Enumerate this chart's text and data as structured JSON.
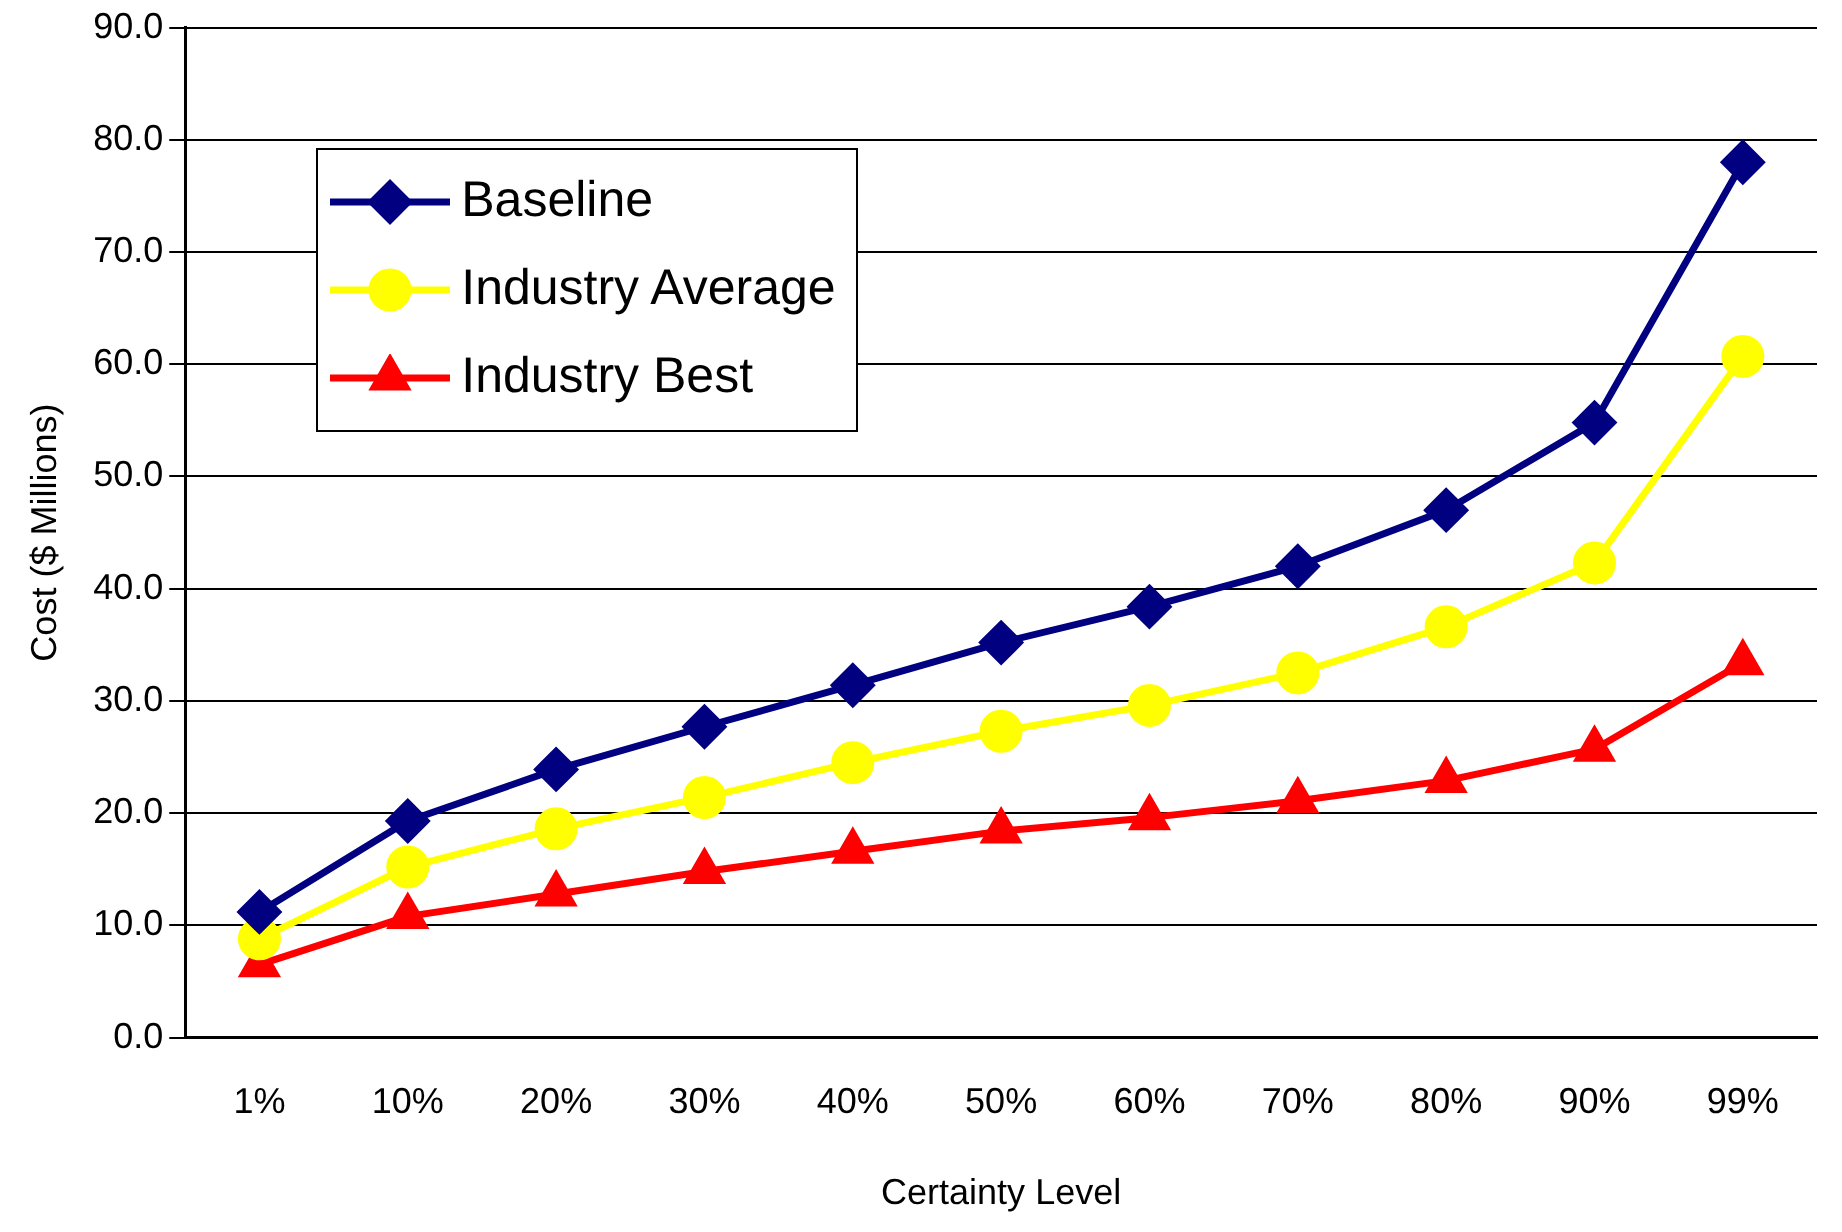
{
  "chart_data": {
    "type": "line",
    "xlabel": "Certainty Level",
    "ylabel": "Cost ($ Millions)",
    "categories": [
      "1%",
      "10%",
      "20%",
      "30%",
      "40%",
      "50%",
      "60%",
      "70%",
      "80%",
      "90%",
      "99%"
    ],
    "series": [
      {
        "name": "Baseline",
        "color": "#000080",
        "marker": "diamond",
        "values": [
          11.2,
          19.3,
          23.9,
          27.7,
          31.4,
          35.2,
          38.4,
          42.0,
          47.0,
          54.8,
          78.0
        ]
      },
      {
        "name": "Industry Average",
        "color": "#ffff00",
        "marker": "circle",
        "values": [
          8.8,
          15.2,
          18.6,
          21.4,
          24.5,
          27.3,
          29.6,
          32.5,
          36.6,
          42.3,
          60.7
        ]
      },
      {
        "name": "Industry Best",
        "color": "#ff0000",
        "marker": "triangle",
        "values": [
          6.5,
          10.8,
          12.8,
          14.8,
          16.6,
          18.4,
          19.6,
          21.1,
          22.9,
          25.7,
          33.4
        ]
      }
    ],
    "ylim": [
      0,
      90
    ],
    "yticks": [
      {
        "value": 0,
        "label": "0.0"
      },
      {
        "value": 10,
        "label": "10.0"
      },
      {
        "value": 20,
        "label": "20.0"
      },
      {
        "value": 30,
        "label": "30.0"
      },
      {
        "value": 40,
        "label": "40.0"
      },
      {
        "value": 50,
        "label": "50.0"
      },
      {
        "value": 60,
        "label": "60.0"
      },
      {
        "value": 70,
        "label": "70.0"
      },
      {
        "value": 80,
        "label": "80.0"
      },
      {
        "value": 90,
        "label": "90.0"
      }
    ],
    "grid": "y",
    "legend": "top left",
    "line_style": "solid"
  }
}
